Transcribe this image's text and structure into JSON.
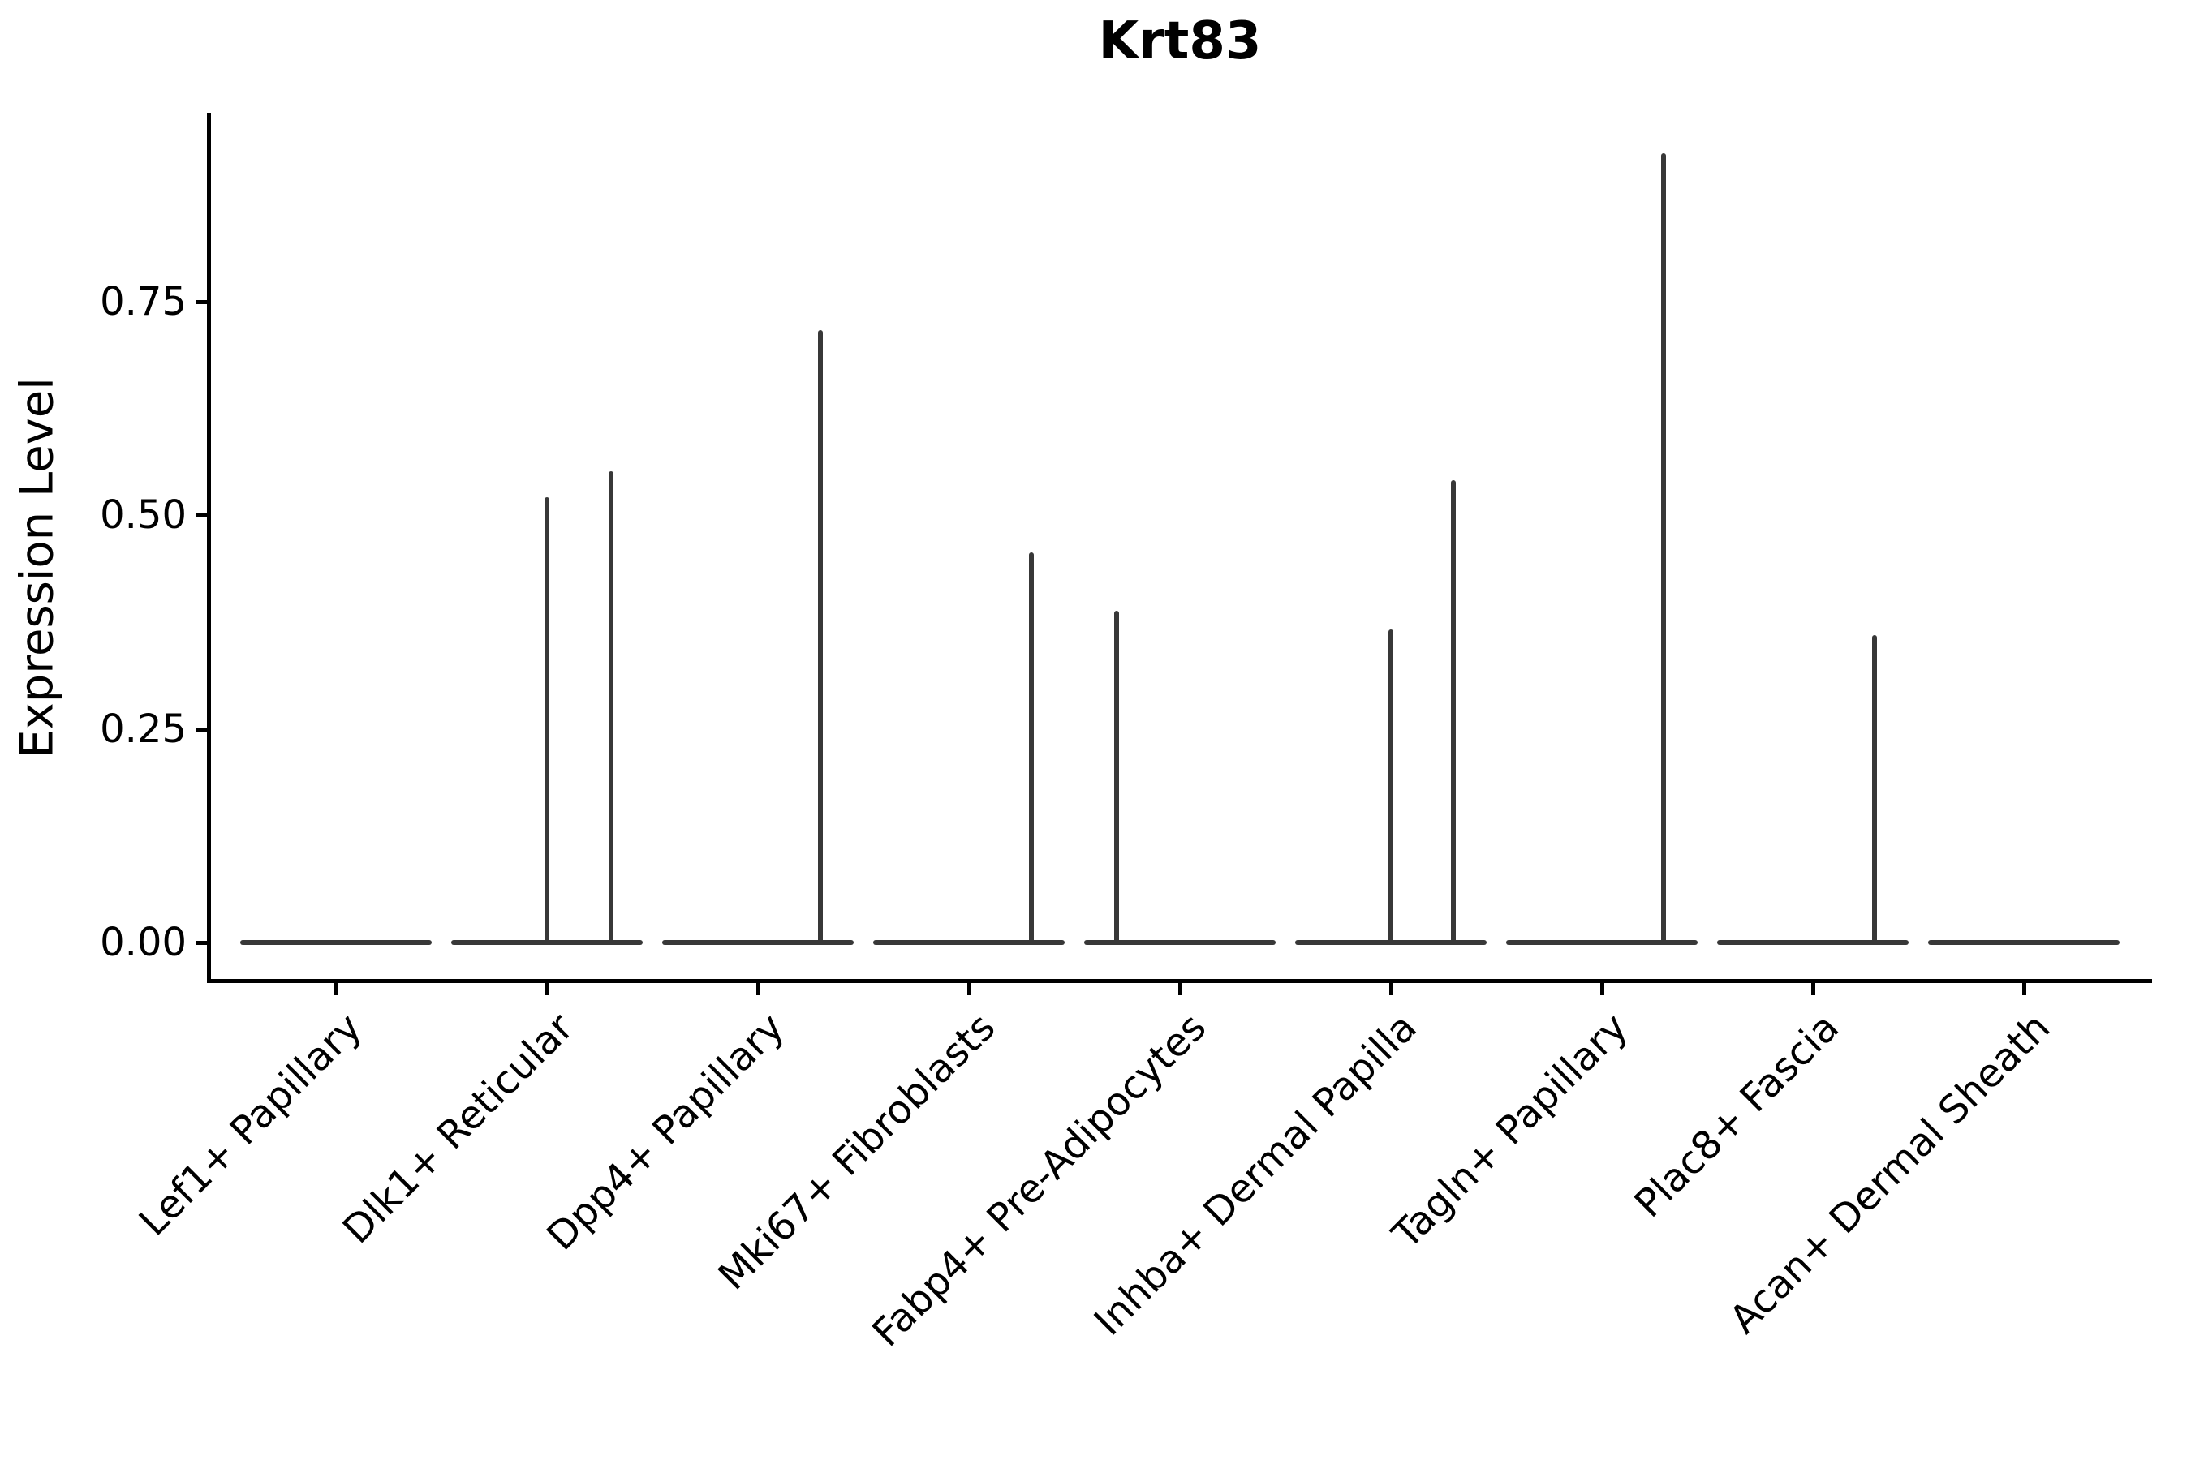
{
  "title": "Krt83",
  "chart_data": {
    "type": "violin",
    "title": "Krt83",
    "xlabel": "",
    "ylabel": "Expression Level",
    "ylim": [
      0,
      0.971
    ],
    "grid": false,
    "legend": false,
    "ytick_labels": [
      "0.00",
      "0.25",
      "0.50",
      "0.75"
    ],
    "ytick_values": [
      0,
      0.25,
      0.5,
      0.75
    ],
    "categories": [
      "Lef1+ Papillary",
      "Dlk1+ Reticular",
      "Dpp4+ Papillary",
      "Mki67+ Fibroblasts",
      "Fabp4+ Pre-Adipocytes",
      "Inhba+ Dermal Papilla",
      "Tagln+ Papillary",
      "Plac8+ Fascia",
      "Acan+ Dermal Sheath"
    ],
    "violins": [
      {
        "category": "Lef1+ Papillary",
        "baseline_value": 0,
        "spikes": []
      },
      {
        "category": "Dlk1+ Reticular",
        "baseline_value": 0,
        "spikes": [
          {
            "offset": 0.0,
            "value": 0.521
          },
          {
            "offset": 0.304,
            "value": 0.552
          }
        ]
      },
      {
        "category": "Dpp4+ Papillary",
        "baseline_value": 0,
        "spikes": [
          {
            "offset": 0.296,
            "value": 0.717
          }
        ]
      },
      {
        "category": "Mki67+ Fibroblasts",
        "baseline_value": 0,
        "spikes": [
          {
            "offset": 0.296,
            "value": 0.457
          }
        ]
      },
      {
        "category": "Fabp4+ Pre-Adipocytes",
        "baseline_value": 0,
        "spikes": [
          {
            "offset": -0.3,
            "value": 0.388
          }
        ]
      },
      {
        "category": "Inhba+ Dermal Papilla",
        "baseline_value": 0,
        "spikes": [
          {
            "offset": 0.0,
            "value": 0.366
          },
          {
            "offset": 0.296,
            "value": 0.541
          }
        ]
      },
      {
        "category": "Tagln+ Papillary",
        "baseline_value": 0,
        "spikes": [
          {
            "offset": 0.292,
            "value": 0.924
          }
        ]
      },
      {
        "category": "Plac8+ Fascia",
        "baseline_value": 0,
        "spikes": [
          {
            "offset": 0.292,
            "value": 0.36
          }
        ]
      },
      {
        "category": "Acan+ Dermal Sheath",
        "baseline_value": 0,
        "spikes": []
      }
    ],
    "colors": {
      "violin": "#383838",
      "axis": "#000000",
      "text": "#000000",
      "background": "#ffffff"
    }
  }
}
